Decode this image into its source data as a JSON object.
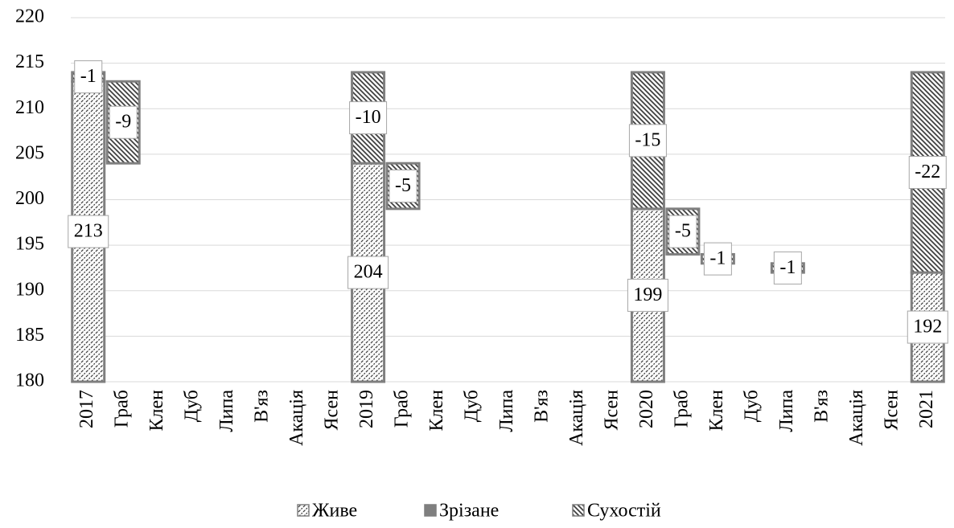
{
  "chart_data": {
    "type": "waterfall",
    "categories": [
      "2017",
      "Граб",
      "Клен",
      "Дуб",
      "Липа",
      "В'яз",
      "Акація",
      "Ясен",
      "2019",
      "Граб",
      "Клен",
      "Дуб",
      "Липа",
      "В'яз",
      "Акація",
      "Ясен",
      "2020",
      "Граб",
      "Клен",
      "Дуб",
      "Липа",
      "В'яз",
      "Акація",
      "Ясен",
      "2021"
    ],
    "series": [
      {
        "name": "Живе",
        "color": "#404040",
        "pattern": "forward",
        "values": [
          213,
          null,
          null,
          null,
          null,
          null,
          null,
          null,
          204,
          null,
          null,
          null,
          null,
          null,
          null,
          null,
          199,
          null,
          null,
          null,
          null,
          null,
          null,
          null,
          192
        ]
      },
      {
        "name": "Зрізане",
        "color": "#7f7f7f",
        "pattern": "solid",
        "values": [
          null,
          null,
          null,
          null,
          null,
          null,
          null,
          null,
          null,
          null,
          null,
          null,
          null,
          null,
          null,
          null,
          null,
          null,
          null,
          null,
          null,
          null,
          null,
          null,
          null
        ]
      },
      {
        "name": "Сухостій",
        "color": "#404040",
        "pattern": "backward",
        "values": [
          -1,
          -9,
          null,
          null,
          null,
          null,
          null,
          null,
          -10,
          -5,
          null,
          null,
          null,
          null,
          null,
          null,
          -15,
          -5,
          -1,
          null,
          -1,
          null,
          null,
          null,
          -22
        ]
      }
    ],
    "ylim": [
      180,
      220
    ],
    "yticks": [
      180,
      185,
      190,
      195,
      200,
      205,
      210,
      215,
      220
    ],
    "grid": true,
    "legend": "bottom"
  }
}
